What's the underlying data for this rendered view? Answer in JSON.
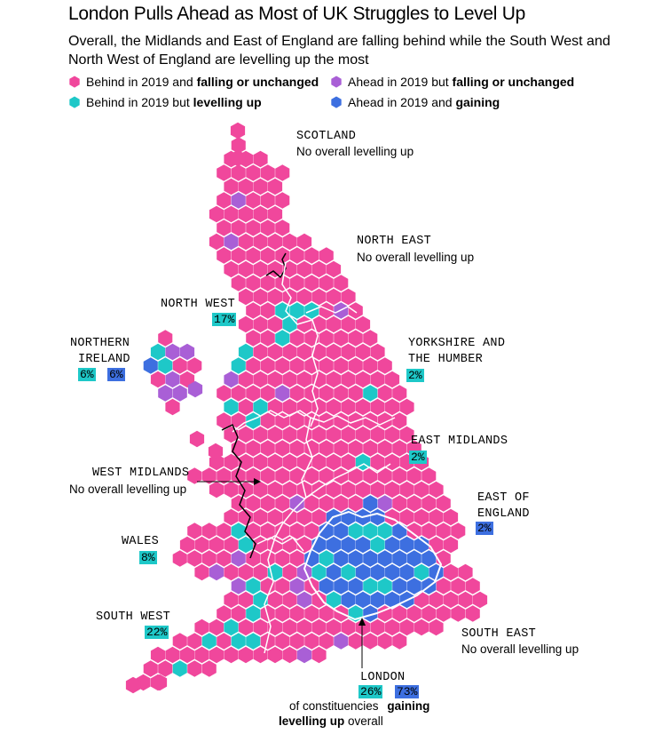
{
  "title": "London Pulls Ahead as Most of UK Struggles to Level Up",
  "subtitle": "Overall, the Midlands and East of England are falling behind while the South West and North West of England are levelling up the most",
  "colors": {
    "pink": "#f0479c",
    "purple": "#a95fd6",
    "teal": "#1ec8c8",
    "blue": "#3d6fe0"
  },
  "legend": [
    {
      "icon": "pink-hexagon-icon",
      "color": "#f0479c",
      "text": "Behind in 2019 and ",
      "bold": "falling or unchanged"
    },
    {
      "icon": "purple-hexagon-icon",
      "color": "#a95fd6",
      "text": "Ahead in 2019 but ",
      "bold": "falling or unchanged"
    },
    {
      "icon": "teal-hexagon-icon",
      "color": "#1ec8c8",
      "text": "Behind in 2019 but ",
      "bold": "levelling up"
    },
    {
      "icon": "blue-hexagon-icon",
      "color": "#3d6fe0",
      "text": "Ahead in 2019 and ",
      "bold": "gaining"
    }
  ],
  "regions": {
    "scotland": {
      "name": "SCOTLAND",
      "note": "No overall levelling up"
    },
    "north_east": {
      "name": "NORTH EAST",
      "note": "No overall levelling up"
    },
    "north_west": {
      "name": "NORTH WEST",
      "pct_levelling": "17%"
    },
    "northern_ireland": {
      "name_line1": "NORTHERN",
      "name_line2": "IRELAND",
      "pct_levelling": "6%",
      "pct_gaining": "6%"
    },
    "yorkshire": {
      "name_line1": "YORKSHIRE AND",
      "name_line2": "THE HUMBER",
      "pct_levelling": "2%"
    },
    "east_midlands": {
      "name": "EAST MIDLANDS",
      "pct_levelling": "2%"
    },
    "west_midlands": {
      "name": "WEST MIDLANDS",
      "note": "No overall levelling up"
    },
    "east_of_england": {
      "name_line1": "EAST OF",
      "name_line2": "ENGLAND",
      "pct_gaining": "2%"
    },
    "wales": {
      "name": "WALES",
      "pct_levelling": "8%"
    },
    "south_west": {
      "name": "SOUTH WEST",
      "pct_levelling": "22%"
    },
    "south_east": {
      "name": "SOUTH EAST",
      "note": "No overall levelling up"
    },
    "london": {
      "name": "LONDON",
      "pct_levelling": "26%",
      "pct_gaining": "73%"
    }
  },
  "london_note": {
    "line1_text": "of constituencies",
    "line1_bold": "gaining",
    "line2_bold": "levelling up",
    "line2_text": " overall"
  }
}
